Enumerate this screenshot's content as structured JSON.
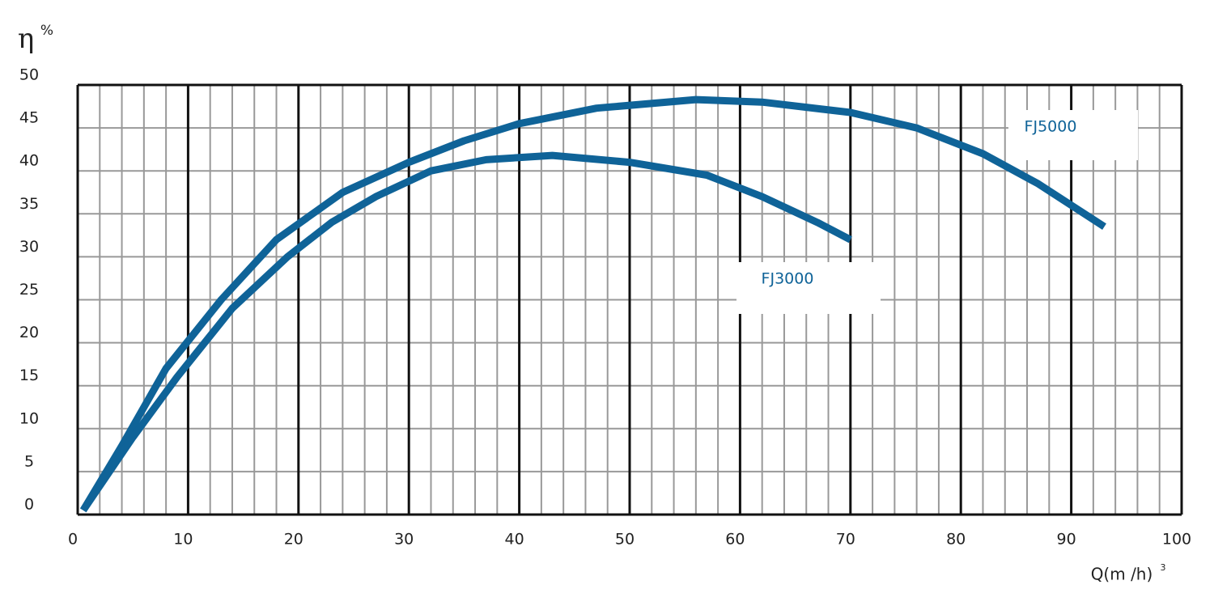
{
  "chart_data": {
    "type": "line",
    "y_label": "η",
    "y_unit": "%",
    "x_label": "Q(m /h)",
    "x_label_sup": "3",
    "xlim": [
      0,
      100
    ],
    "xticks": [
      0,
      10,
      20,
      30,
      40,
      50,
      60,
      70,
      80,
      90,
      100
    ],
    "x_minor_ticks": [
      2,
      4,
      6,
      8,
      12,
      14,
      16,
      18,
      22,
      24,
      26,
      28,
      32,
      34,
      36,
      38,
      42,
      44,
      46,
      48,
      52,
      54,
      56,
      58,
      62,
      64,
      66,
      68,
      72,
      74,
      76,
      78,
      82,
      84,
      86,
      88,
      92,
      94,
      96,
      98
    ],
    "ylim": [
      0,
      50
    ],
    "yticks": [
      0,
      5,
      10,
      15,
      20,
      25,
      30,
      35,
      40,
      45,
      50
    ],
    "grid": true,
    "series": [
      {
        "name": "FJ5000",
        "color": "#0f6398",
        "x": [
          0.5,
          4,
          8,
          13,
          18,
          24,
          30,
          35,
          40,
          47,
          56,
          62,
          70,
          76,
          82,
          87,
          93
        ],
        "values": [
          0.5,
          8,
          17,
          25,
          32,
          37.5,
          41,
          43.5,
          45.5,
          47.3,
          48.3,
          48,
          46.8,
          45,
          42,
          38.5,
          33.5
        ]
      },
      {
        "name": "FJ3000",
        "color": "#0f6398",
        "x": [
          0.5,
          5,
          9,
          14,
          19,
          23,
          27,
          32,
          37,
          43,
          50,
          57,
          62,
          67,
          70
        ],
        "values": [
          0.5,
          9,
          16,
          24,
          30,
          34,
          37,
          40,
          41.3,
          41.8,
          41,
          39.5,
          37,
          34,
          32
        ]
      }
    ]
  }
}
